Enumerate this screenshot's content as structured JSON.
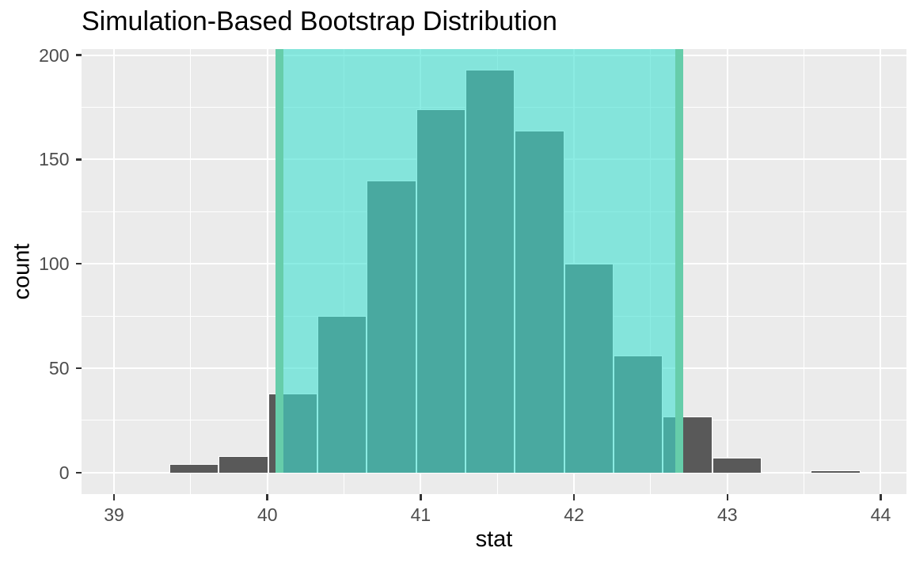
{
  "title": "Simulation-Based Bootstrap Distribution",
  "chart_data": {
    "type": "bar",
    "subtype": "histogram",
    "title": "Simulation-Based Bootstrap Distribution",
    "xlabel": "stat",
    "ylabel": "count",
    "x_ticks": [
      39,
      40,
      41,
      42,
      43,
      44
    ],
    "x_minor_ticks": [
      39.5,
      40.5,
      41.5,
      42.5,
      43.5
    ],
    "y_ticks": [
      0,
      50,
      100,
      150,
      200
    ],
    "y_minor_ticks": [
      25,
      75,
      125,
      175
    ],
    "xlim": [
      38.788,
      44.168
    ],
    "ylim": [
      -10.34,
      202.92
    ],
    "grid": "on",
    "legend": "none",
    "bin_start": 39.362,
    "bin_width": 0.3218,
    "counts": [
      4,
      8,
      38,
      75,
      140,
      174,
      193,
      164,
      100,
      56,
      27,
      7,
      0,
      1
    ],
    "confidence_interval": {
      "lower": 40.077,
      "upper": 42.687
    },
    "colors": {
      "panel_background": "#EBEBEB",
      "gridline": "#FFFFFF",
      "bar_fill": "#595959",
      "bar_border": "#FFFFFF",
      "shade_fill": "rgba(64,224,208,0.6)",
      "ci_line": "#66CDAA",
      "tick_mark": "#333333",
      "tick_label": "#4D4D4D",
      "text": "#000000"
    }
  }
}
